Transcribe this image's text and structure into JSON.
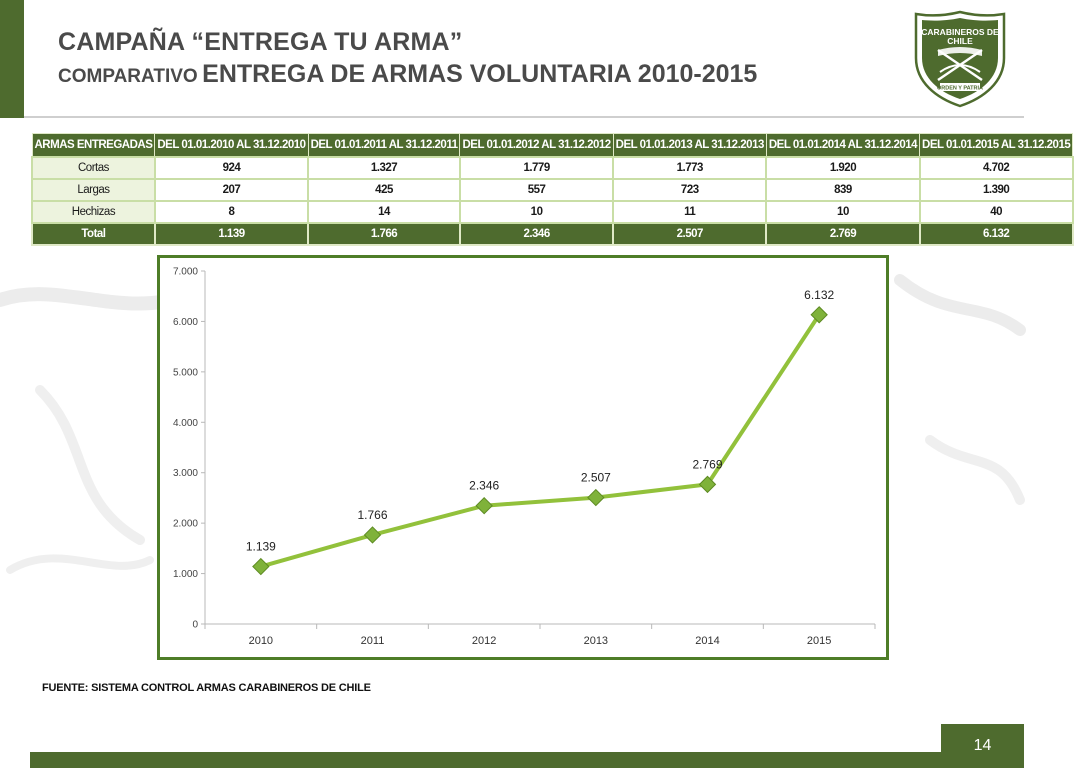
{
  "header": {
    "title_line1": "CAMPAÑA “ENTREGA TU ARMA”",
    "title_line2_small": "COMPARATIVO",
    "title_line2_big": "ENTREGA DE ARMAS VOLUNTARIA  2010-2015"
  },
  "logo": {
    "top_text": "CARABINEROS DE CHILE",
    "motto": "ORDEN Y PATRIA"
  },
  "table": {
    "headers": [
      "ARMAS ENTREGADAS",
      "DEL 01.01.2010 AL 31.12.2010",
      "DEL 01.01.2011 AL 31.12.2011",
      "DEL 01.01.2012 AL 31.12.2012",
      "DEL 01.01.2013 AL 31.12.2013",
      "DEL 01.01.2014 AL 31.12.2014",
      "DEL 01.01.2015 AL 31.12.2015"
    ],
    "rows": [
      {
        "label": "Cortas",
        "values": [
          "924",
          "1.327",
          "1.779",
          "1.773",
          "1.920",
          "4.702"
        ]
      },
      {
        "label": "Largas",
        "values": [
          "207",
          "425",
          "557",
          "723",
          "839",
          "1.390"
        ]
      },
      {
        "label": "Hechizas",
        "values": [
          "8",
          "14",
          "10",
          "11",
          "10",
          "40"
        ]
      }
    ],
    "total": {
      "label": "Total",
      "values": [
        "1.139",
        "1.766",
        "2.346",
        "2.507",
        "2.769",
        "6.132"
      ]
    }
  },
  "chart_data": {
    "type": "line",
    "x": [
      "2010",
      "2011",
      "2012",
      "2013",
      "2014",
      "2015"
    ],
    "series": [
      {
        "values": [
          1139,
          1766,
          2346,
          2507,
          2769,
          6132
        ],
        "labels": [
          "1.139",
          "1.766",
          "2.346",
          "2.507",
          "2.769",
          "6.132"
        ]
      }
    ],
    "ylim": [
      0,
      7000
    ],
    "yticks": [
      0,
      1000,
      2000,
      3000,
      4000,
      5000,
      6000,
      7000
    ],
    "ytick_labels": [
      "0",
      "1.000",
      "2.000",
      "3.000",
      "4.000",
      "5.000",
      "6.000",
      "7.000"
    ],
    "grid": false,
    "line_color": "#92c13b",
    "marker_color": "#7fb23a"
  },
  "footer": {
    "source": "FUENTE: SISTEMA  CONTROL ARMAS CARABINEROS DE CHILE",
    "page_number": "14"
  },
  "colors": {
    "brand_green": "#4e6b2e",
    "table_border": "#c9dea6",
    "chart_frame": "#4e7d27"
  }
}
